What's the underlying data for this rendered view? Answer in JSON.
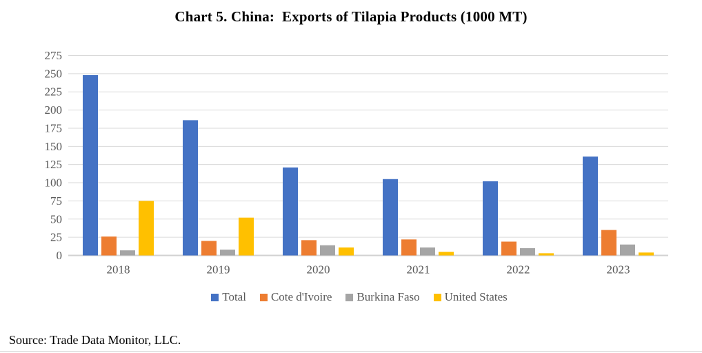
{
  "page": {
    "source_note": "Source: Trade Data Monitor, LLC."
  },
  "chart_data": {
    "type": "bar",
    "title": "Chart 5. China:  Exports of Tilapia Products (1000 MT)",
    "categories": [
      "2018",
      "2019",
      "2020",
      "2021",
      "2022",
      "2023"
    ],
    "series": [
      {
        "name": "Total",
        "color": "#4472C4",
        "values": [
          248,
          186,
          121,
          105,
          102,
          136
        ]
      },
      {
        "name": "Cote d'Ivoire",
        "color": "#ED7D31",
        "values": [
          26,
          20,
          21,
          22,
          19,
          35
        ]
      },
      {
        "name": "Burkina Faso",
        "color": "#A5A5A5",
        "values": [
          7,
          8,
          14,
          11,
          10,
          15
        ]
      },
      {
        "name": "United States",
        "color": "#FFC000",
        "values": [
          75,
          52,
          11,
          5,
          3,
          4
        ]
      }
    ],
    "xlabel": "",
    "ylabel": "",
    "ylim": [
      0,
      275
    ],
    "ytick_step": 25,
    "grid": true,
    "legend_position": "bottom",
    "colors": {
      "gridline": "#D9D9D9",
      "axis_line": "#D2D2D2",
      "tick_label": "#595959",
      "legend_label": "#595959",
      "title": "#000000"
    }
  }
}
